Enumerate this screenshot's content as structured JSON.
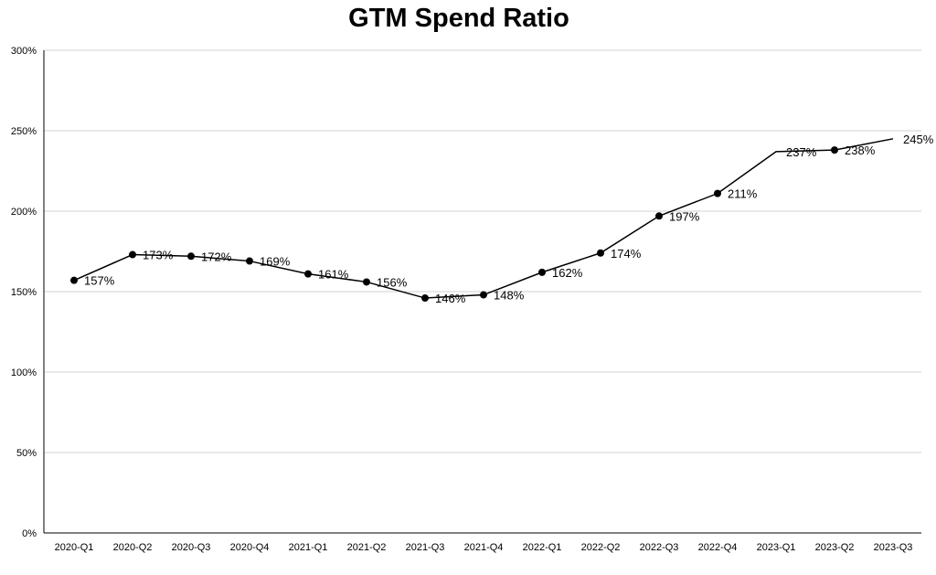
{
  "chart_data": {
    "type": "line",
    "title": "GTM Spend Ratio",
    "xlabel": "",
    "ylabel": "",
    "ylim": [
      0,
      300
    ],
    "y_ticks": [
      "0%",
      "50%",
      "100%",
      "150%",
      "200%",
      "250%",
      "300%"
    ],
    "categories": [
      "2020-Q1",
      "2020-Q2",
      "2020-Q3",
      "2020-Q4",
      "2021-Q1",
      "2021-Q2",
      "2021-Q3",
      "2021-Q4",
      "2022-Q1",
      "2022-Q2",
      "2022-Q3",
      "2022-Q4",
      "2023-Q1",
      "2023-Q2",
      "2023-Q3"
    ],
    "series": [
      {
        "values": [
          157,
          173,
          172,
          169,
          161,
          156,
          146,
          148,
          162,
          174,
          197,
          211,
          237,
          238,
          245
        ],
        "labels": [
          "157%",
          "173%",
          "172%",
          "169%",
          "161%",
          "156%",
          "146%",
          "148%",
          "162%",
          "174%",
          "197%",
          "211%",
          "237%",
          "238%",
          "245%"
        ],
        "markers": [
          true,
          true,
          true,
          true,
          true,
          true,
          true,
          true,
          true,
          true,
          true,
          true,
          false,
          true,
          false
        ]
      }
    ],
    "grid": true,
    "legend": "none",
    "colors": {
      "line": "#000000",
      "grid": "#d0d0d0",
      "axis": "#000000"
    }
  }
}
